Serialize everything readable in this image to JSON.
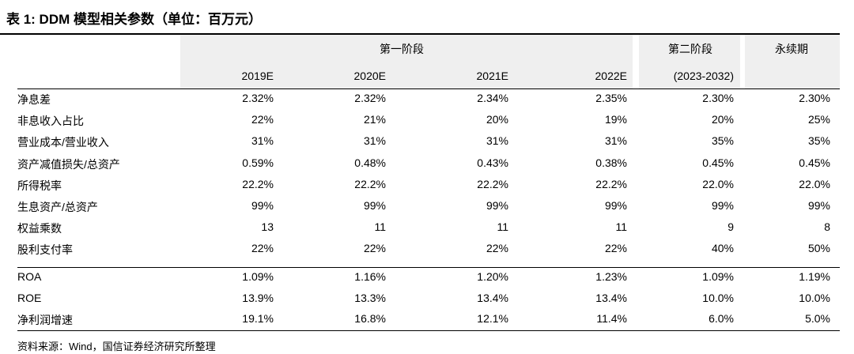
{
  "title": "表 1:  DDM 模型相关参数（单位：百万元）",
  "table": {
    "group_headers": [
      "第一阶段",
      "第二阶段",
      "永续期"
    ],
    "columns": [
      "2019E",
      "2020E",
      "2021E",
      "2022E",
      "(2023-2032)"
    ],
    "rows": [
      {
        "label": "净息差",
        "values": [
          "2.32%",
          "2.32%",
          "2.34%",
          "2.35%",
          "2.30%",
          "2.30%"
        ]
      },
      {
        "label": "非息收入占比",
        "values": [
          "22%",
          "21%",
          "20%",
          "19%",
          "20%",
          "25%"
        ]
      },
      {
        "label": "营业成本/营业收入",
        "values": [
          "31%",
          "31%",
          "31%",
          "31%",
          "35%",
          "35%"
        ]
      },
      {
        "label": "资产减值损失/总资产",
        "values": [
          "0.59%",
          "0.48%",
          "0.43%",
          "0.38%",
          "0.45%",
          "0.45%"
        ]
      },
      {
        "label": "所得税率",
        "values": [
          "22.2%",
          "22.2%",
          "22.2%",
          "22.2%",
          "22.0%",
          "22.0%"
        ]
      },
      {
        "label": "生息资产/总资产",
        "values": [
          "99%",
          "99%",
          "99%",
          "99%",
          "99%",
          "99%"
        ]
      },
      {
        "label": "权益乘数",
        "values": [
          "13",
          "11",
          "11",
          "11",
          "9",
          "8"
        ]
      },
      {
        "label": "股利支付率",
        "values": [
          "22%",
          "22%",
          "22%",
          "22%",
          "40%",
          "50%"
        ]
      },
      {
        "label": "ROA",
        "values": [
          "1.09%",
          "1.16%",
          "1.20%",
          "1.23%",
          "1.09%",
          "1.19%"
        ]
      },
      {
        "label": "ROE",
        "values": [
          "13.9%",
          "13.3%",
          "13.4%",
          "13.4%",
          "10.0%",
          "10.0%"
        ]
      },
      {
        "label": "净利润增速",
        "values": [
          "19.1%",
          "16.8%",
          "12.1%",
          "11.4%",
          "6.0%",
          "5.0%"
        ]
      }
    ]
  },
  "source": "资料来源：Wind，国信证券经济研究所整理"
}
